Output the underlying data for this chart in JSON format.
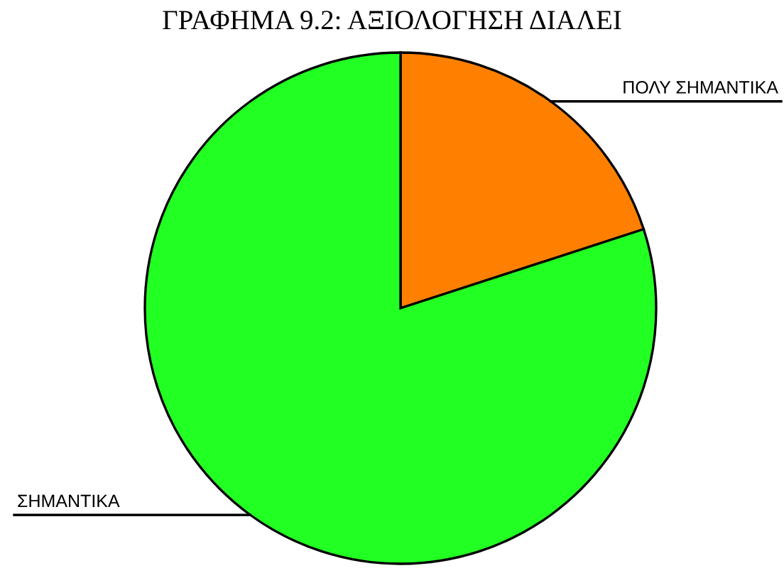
{
  "chart_data": {
    "type": "pie",
    "title": "ΓΡΑΦΗΜΑ 9.2: ΑΞΙΟΛΟΓΗΣΗ ΔΙΑΛΕΙ",
    "categories": [
      "ΠΟΛΥ ΣΗΜΑΝΤΙΚΑ",
      "ΣΗΜΑΝΤΙΚΑ"
    ],
    "values": [
      20,
      80
    ],
    "colors": [
      "#ff8000",
      "#22ff22"
    ],
    "legend": false
  }
}
